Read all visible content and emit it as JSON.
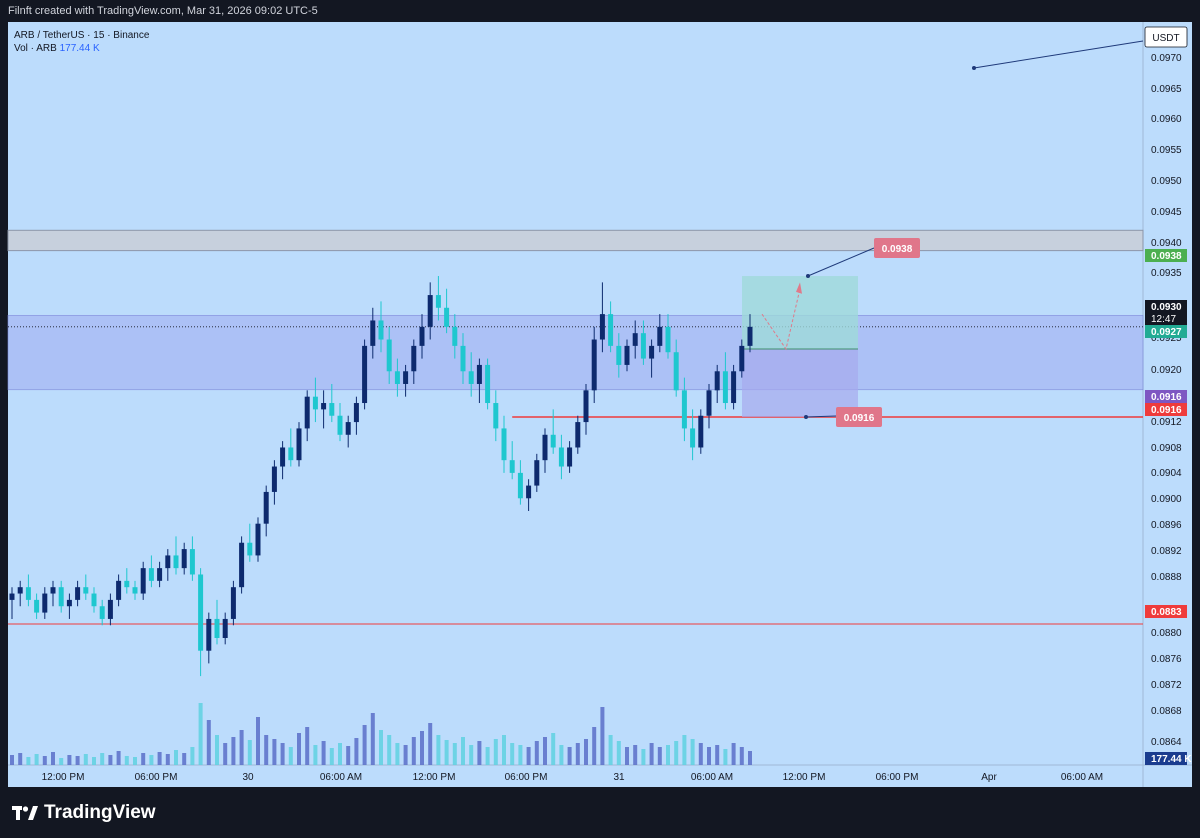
{
  "header": {
    "attribution": "Filnft created with TradingView.com, Mar 31, 2026 09:02 UTC-5"
  },
  "legend": {
    "symbol": "ARB / TetherUS · 15 · Binance",
    "vol_label": "Vol · ARB",
    "vol_value": "177.44 K"
  },
  "footer": {
    "brand": "TradingView"
  },
  "colors": {
    "background": "#bcdcfc",
    "up": "#0d2a6e",
    "down": "#1ec7cf",
    "support": "#ef3b3b",
    "zone": "#a7b8f5",
    "target_zone": "#9fd9d9",
    "stop_zone": "#a7a9ee"
  },
  "chart_data": {
    "type": "candlestick",
    "currency": "USDT",
    "price_axis_ticks": [
      "0.0970",
      "0.0965",
      "0.0960",
      "0.0955",
      "0.0950",
      "0.0945",
      "0.0940",
      "0.0935",
      "0.0925",
      "0.0920",
      "0.0912",
      "0.0908",
      "0.0904",
      "0.0900",
      "0.0896",
      "0.0892",
      "0.0888",
      "0.0880",
      "0.0876",
      "0.0872",
      "0.0868",
      "0.0864"
    ],
    "time_axis_ticks": [
      "12:00 PM",
      "06:00 PM",
      "30",
      "06:00 AM",
      "12:00 PM",
      "06:00 PM",
      "31",
      "06:00 AM",
      "12:00 PM",
      "06:00 PM",
      "Apr",
      "06:00 AM"
    ],
    "ylim": [
      0.0861,
      0.0978
    ],
    "price_labels": [
      {
        "text": "0.0938",
        "kind": "target"
      },
      {
        "text": "0.0930",
        "kind": "last"
      },
      {
        "text": "12:47",
        "kind": "countdown"
      },
      {
        "text": "0.0927",
        "kind": "entry"
      },
      {
        "text": "0.0916",
        "kind": "level"
      },
      {
        "text": "0.0916",
        "kind": "stop"
      },
      {
        "text": "0.0883",
        "kind": "support"
      },
      {
        "text": "177.44 K",
        "kind": "volume"
      }
    ],
    "annotations": [
      {
        "text": "0.0938"
      },
      {
        "text": "0.0916"
      }
    ],
    "levels": {
      "resistance_band": [
        0.0942,
        0.09452
      ],
      "range_zone": [
        0.09201,
        0.09318
      ],
      "stop_line": 0.09158,
      "support_line": 0.08832,
      "last_price": 0.093
    },
    "position": {
      "entry": 0.09265,
      "target": 0.0938,
      "stop": 0.09158
    },
    "candles": [
      [
        0.0887,
        0.0889,
        0.0884,
        0.0888
      ],
      [
        0.0888,
        0.089,
        0.0886,
        0.0889
      ],
      [
        0.0889,
        0.0891,
        0.0886,
        0.0887
      ],
      [
        0.0887,
        0.0888,
        0.0884,
        0.0885
      ],
      [
        0.0885,
        0.0889,
        0.0884,
        0.0888
      ],
      [
        0.0888,
        0.089,
        0.0886,
        0.0889
      ],
      [
        0.0889,
        0.089,
        0.0885,
        0.0886
      ],
      [
        0.0886,
        0.0888,
        0.0884,
        0.0887
      ],
      [
        0.0887,
        0.089,
        0.0886,
        0.0889
      ],
      [
        0.0889,
        0.0891,
        0.0887,
        0.0888
      ],
      [
        0.0888,
        0.0889,
        0.0885,
        0.0886
      ],
      [
        0.0886,
        0.0887,
        0.0883,
        0.0884
      ],
      [
        0.0884,
        0.0888,
        0.0883,
        0.0887
      ],
      [
        0.0887,
        0.0891,
        0.0886,
        0.089
      ],
      [
        0.089,
        0.0892,
        0.0888,
        0.0889
      ],
      [
        0.0889,
        0.089,
        0.0887,
        0.0888
      ],
      [
        0.0888,
        0.0893,
        0.0887,
        0.0892
      ],
      [
        0.0892,
        0.0894,
        0.0889,
        0.089
      ],
      [
        0.089,
        0.0893,
        0.0889,
        0.0892
      ],
      [
        0.0892,
        0.0895,
        0.089,
        0.0894
      ],
      [
        0.0894,
        0.0897,
        0.0891,
        0.0892
      ],
      [
        0.0892,
        0.0896,
        0.0891,
        0.0895
      ],
      [
        0.0895,
        0.0897,
        0.089,
        0.0891
      ],
      [
        0.0891,
        0.0892,
        0.0875,
        0.0879
      ],
      [
        0.0879,
        0.0885,
        0.0877,
        0.0884
      ],
      [
        0.0884,
        0.0887,
        0.088,
        0.0881
      ],
      [
        0.0881,
        0.0885,
        0.088,
        0.0884
      ],
      [
        0.0884,
        0.089,
        0.0883,
        0.0889
      ],
      [
        0.0889,
        0.0897,
        0.0888,
        0.0896
      ],
      [
        0.0896,
        0.0899,
        0.0893,
        0.0894
      ],
      [
        0.0894,
        0.09,
        0.0893,
        0.0899
      ],
      [
        0.0899,
        0.0905,
        0.0897,
        0.0904
      ],
      [
        0.0904,
        0.0909,
        0.0902,
        0.0908
      ],
      [
        0.0908,
        0.0912,
        0.0906,
        0.0911
      ],
      [
        0.0911,
        0.0914,
        0.0908,
        0.0909
      ],
      [
        0.0909,
        0.0915,
        0.0908,
        0.0914
      ],
      [
        0.0914,
        0.092,
        0.0912,
        0.0919
      ],
      [
        0.0919,
        0.0922,
        0.0915,
        0.0917
      ],
      [
        0.0917,
        0.092,
        0.0914,
        0.0918
      ],
      [
        0.0918,
        0.0921,
        0.0915,
        0.0916
      ],
      [
        0.0916,
        0.0918,
        0.0912,
        0.0913
      ],
      [
        0.0913,
        0.0916,
        0.0911,
        0.0915
      ],
      [
        0.0915,
        0.0919,
        0.0913,
        0.0918
      ],
      [
        0.0918,
        0.0928,
        0.0917,
        0.0927
      ],
      [
        0.0927,
        0.0933,
        0.0925,
        0.0931
      ],
      [
        0.0931,
        0.0934,
        0.0926,
        0.0928
      ],
      [
        0.0928,
        0.093,
        0.0921,
        0.0923
      ],
      [
        0.0923,
        0.0925,
        0.0919,
        0.0921
      ],
      [
        0.0921,
        0.0924,
        0.0919,
        0.0923
      ],
      [
        0.0923,
        0.0928,
        0.0921,
        0.0927
      ],
      [
        0.0927,
        0.0932,
        0.0925,
        0.093
      ],
      [
        0.093,
        0.0937,
        0.0928,
        0.0935
      ],
      [
        0.0935,
        0.0938,
        0.0931,
        0.0933
      ],
      [
        0.0933,
        0.0936,
        0.0929,
        0.093
      ],
      [
        0.093,
        0.0932,
        0.0925,
        0.0927
      ],
      [
        0.0927,
        0.0929,
        0.0921,
        0.0923
      ],
      [
        0.0923,
        0.0926,
        0.0919,
        0.0921
      ],
      [
        0.0921,
        0.0925,
        0.0918,
        0.0924
      ],
      [
        0.0924,
        0.0925,
        0.0917,
        0.0918
      ],
      [
        0.0918,
        0.092,
        0.0912,
        0.0914
      ],
      [
        0.0914,
        0.0916,
        0.0907,
        0.0909
      ],
      [
        0.0909,
        0.0912,
        0.0906,
        0.0907
      ],
      [
        0.0907,
        0.0909,
        0.0902,
        0.0903
      ],
      [
        0.0903,
        0.0906,
        0.0901,
        0.0905
      ],
      [
        0.0905,
        0.091,
        0.0904,
        0.0909
      ],
      [
        0.0909,
        0.0914,
        0.0907,
        0.0913
      ],
      [
        0.0913,
        0.0917,
        0.091,
        0.0911
      ],
      [
        0.0911,
        0.0913,
        0.0906,
        0.0908
      ],
      [
        0.0908,
        0.0912,
        0.0907,
        0.0911
      ],
      [
        0.0911,
        0.0916,
        0.091,
        0.0915
      ],
      [
        0.0915,
        0.0921,
        0.0913,
        0.092
      ],
      [
        0.092,
        0.093,
        0.0918,
        0.0928
      ],
      [
        0.0928,
        0.0937,
        0.0926,
        0.0932
      ],
      [
        0.0932,
        0.0934,
        0.0926,
        0.0927
      ],
      [
        0.0927,
        0.0929,
        0.0922,
        0.0924
      ],
      [
        0.0924,
        0.0928,
        0.0923,
        0.0927
      ],
      [
        0.0927,
        0.0931,
        0.0925,
        0.0929
      ],
      [
        0.0929,
        0.0931,
        0.0924,
        0.0925
      ],
      [
        0.0925,
        0.0928,
        0.0922,
        0.0927
      ],
      [
        0.0927,
        0.0932,
        0.0926,
        0.093
      ],
      [
        0.093,
        0.0932,
        0.0925,
        0.0926
      ],
      [
        0.0926,
        0.0928,
        0.0919,
        0.092
      ],
      [
        0.092,
        0.0922,
        0.0912,
        0.0914
      ],
      [
        0.0914,
        0.0917,
        0.0909,
        0.0911
      ],
      [
        0.0911,
        0.0917,
        0.091,
        0.0916
      ],
      [
        0.0916,
        0.0921,
        0.0914,
        0.092
      ],
      [
        0.092,
        0.0924,
        0.0918,
        0.0923
      ],
      [
        0.0923,
        0.0926,
        0.0917,
        0.0918
      ],
      [
        0.0918,
        0.0924,
        0.0917,
        0.0923
      ],
      [
        0.0923,
        0.0928,
        0.0922,
        0.0927
      ],
      [
        0.0927,
        0.0932,
        0.0926,
        0.093
      ]
    ],
    "volume": [
      0.1,
      0.12,
      0.08,
      0.11,
      0.09,
      0.13,
      0.07,
      0.1,
      0.09,
      0.11,
      0.08,
      0.12,
      0.1,
      0.14,
      0.09,
      0.08,
      0.12,
      0.1,
      0.13,
      0.11,
      0.15,
      0.12,
      0.18,
      0.62,
      0.45,
      0.3,
      0.22,
      0.28,
      0.35,
      0.25,
      0.48,
      0.3,
      0.26,
      0.22,
      0.18,
      0.32,
      0.38,
      0.2,
      0.24,
      0.17,
      0.22,
      0.19,
      0.27,
      0.4,
      0.52,
      0.35,
      0.3,
      0.22,
      0.2,
      0.28,
      0.34,
      0.42,
      0.3,
      0.25,
      0.22,
      0.28,
      0.2,
      0.24,
      0.18,
      0.26,
      0.3,
      0.22,
      0.2,
      0.18,
      0.24,
      0.28,
      0.32,
      0.2,
      0.18,
      0.22,
      0.26,
      0.38,
      0.58,
      0.3,
      0.24,
      0.18,
      0.2,
      0.16,
      0.22,
      0.18,
      0.2,
      0.24,
      0.3,
      0.26,
      0.22,
      0.18,
      0.2,
      0.16,
      0.22,
      0.18,
      0.14
    ]
  }
}
